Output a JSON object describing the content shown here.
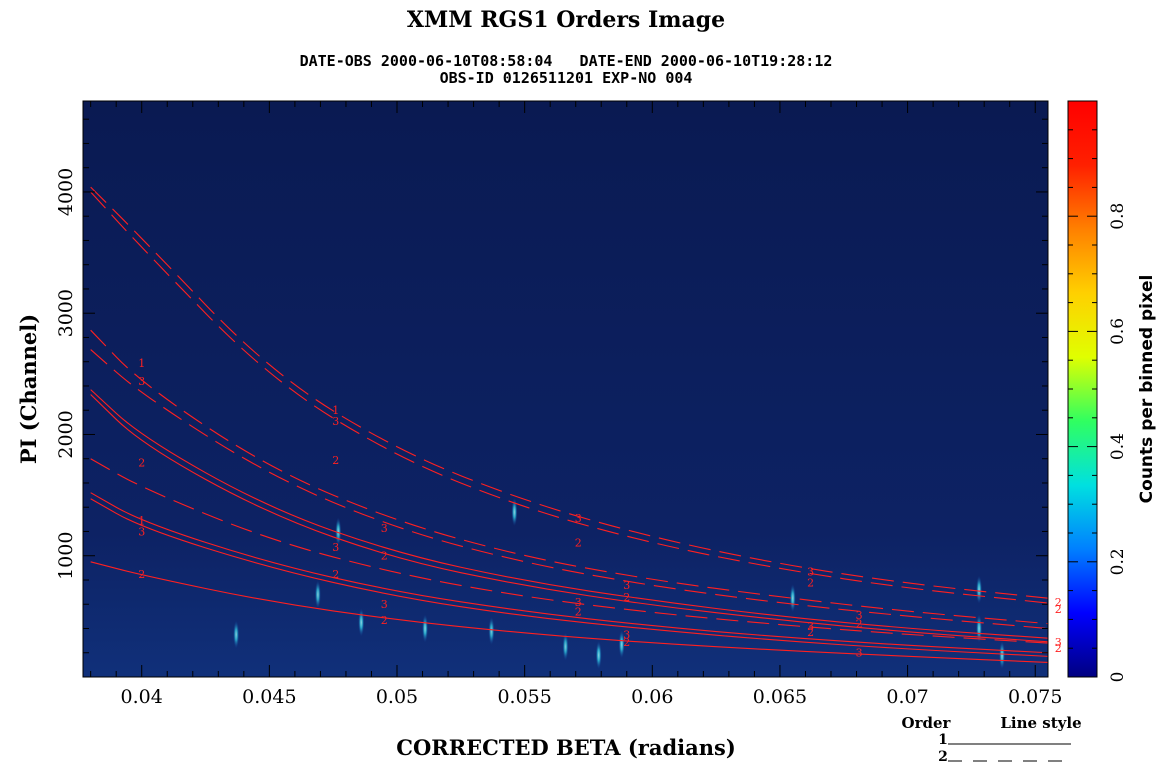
{
  "chart_data": {
    "type": "heatmap",
    "title": "XMM RGS1 Orders Image",
    "subtitle_line1": "DATE-OBS 2000-06-10T08:58:04   DATE-END 2000-06-10T19:28:12",
    "subtitle_line2": "OBS-ID 0126511201 EXP-NO 004",
    "xlabel": "CORRECTED BETA (radians)",
    "ylabel": "PI (Channel)",
    "xlim": [
      0.0377,
      0.0755
    ],
    "ylim": [
      0,
      4750
    ],
    "xticks": [
      0.04,
      0.045,
      0.05,
      0.055,
      0.06,
      0.065,
      0.07,
      0.075
    ],
    "xtick_labels": [
      "0.04",
      "0.045",
      "0.05",
      "0.055",
      "0.06",
      "0.065",
      "0.07",
      "0.075"
    ],
    "yticks": [
      1000,
      2000,
      3000,
      4000
    ],
    "ytick_labels": [
      "1000",
      "2000",
      "3000",
      "4000"
    ],
    "colorbar": {
      "label": "Counts per binned pixel",
      "range": [
        0,
        1
      ],
      "ticks": [
        0,
        0.2,
        0.4,
        0.6,
        0.8
      ],
      "tick_labels": [
        "0",
        "0.2",
        "0.4",
        "0.6",
        "0.8"
      ],
      "colors": [
        "#000080",
        "#0000ff",
        "#0080ff",
        "#00e0e0",
        "#30ff60",
        "#e0ff00",
        "#ffd000",
        "#ff8000",
        "#ff2000",
        "#ff0000"
      ]
    },
    "legend": {
      "header_order": "Order",
      "header_style": "Line style",
      "entries": [
        {
          "order": "1",
          "style": "solid"
        },
        {
          "order": "2",
          "style": "dashed"
        }
      ]
    },
    "background_color": "#0c1e5c",
    "curve_color": "#ff2020",
    "curves": [
      {
        "style": "dashed",
        "order": 1,
        "x": [
          0.038,
          0.04,
          0.045,
          0.05,
          0.055,
          0.06,
          0.065,
          0.07,
          0.0755
        ],
        "y": [
          4040,
          3620,
          2520,
          1870,
          1450,
          1150,
          930,
          770,
          650
        ]
      },
      {
        "style": "dashed",
        "order": 1,
        "x": [
          0.038,
          0.04,
          0.045,
          0.05,
          0.055,
          0.06,
          0.065,
          0.07,
          0.0755
        ],
        "y": [
          4000,
          3540,
          2460,
          1810,
          1390,
          1100,
          890,
          730,
          610
        ]
      },
      {
        "style": "dashed",
        "order": 2,
        "x": [
          0.038,
          0.04,
          0.045,
          0.05,
          0.055,
          0.06,
          0.065,
          0.07,
          0.0755
        ],
        "y": [
          2860,
          2420,
          1720,
          1280,
          990,
          800,
          660,
          540,
          440
        ]
      },
      {
        "style": "dashed",
        "order": 2,
        "x": [
          0.038,
          0.04,
          0.045,
          0.05,
          0.055,
          0.06,
          0.065,
          0.07,
          0.0755
        ],
        "y": [
          2700,
          2330,
          1660,
          1220,
          940,
          750,
          610,
          500,
          400
        ]
      },
      {
        "style": "dashed",
        "order": 2,
        "x": [
          0.038,
          0.04,
          0.045,
          0.05,
          0.055,
          0.06,
          0.065,
          0.07,
          0.0755
        ],
        "y": [
          1800,
          1560,
          1130,
          850,
          660,
          530,
          430,
          350,
          280
        ]
      },
      {
        "style": "solid",
        "order": 1,
        "x": [
          0.038,
          0.04,
          0.045,
          0.05,
          0.055,
          0.06,
          0.065,
          0.07,
          0.0755
        ],
        "y": [
          2370,
          1980,
          1390,
          1020,
          790,
          630,
          500,
          400,
          320
        ]
      },
      {
        "style": "solid",
        "order": 1,
        "x": [
          0.038,
          0.04,
          0.045,
          0.05,
          0.055,
          0.06,
          0.065,
          0.07,
          0.0755
        ],
        "y": [
          2330,
          1920,
          1340,
          970,
          750,
          590,
          470,
          370,
          290
        ]
      },
      {
        "style": "solid",
        "order": 1,
        "x": [
          0.038,
          0.04,
          0.045,
          0.05,
          0.055,
          0.06,
          0.065,
          0.07,
          0.0755
        ],
        "y": [
          1520,
          1280,
          940,
          700,
          540,
          420,
          330,
          260,
          200
        ]
      },
      {
        "style": "solid",
        "order": 1,
        "x": [
          0.038,
          0.04,
          0.045,
          0.05,
          0.055,
          0.06,
          0.065,
          0.07,
          0.0755
        ],
        "y": [
          1470,
          1230,
          900,
          660,
          500,
          390,
          300,
          230,
          170
        ]
      },
      {
        "style": "solid",
        "order": 2,
        "x": [
          0.038,
          0.04,
          0.045,
          0.05,
          0.055,
          0.06,
          0.065,
          0.07,
          0.0755
        ],
        "y": [
          950,
          840,
          620,
          470,
          360,
          280,
          220,
          170,
          120
        ]
      }
    ],
    "curve_labels": [
      {
        "text": "1",
        "x": 0.04,
        "y": 2590
      },
      {
        "text": "3",
        "x": 0.04,
        "y": 2440
      },
      {
        "text": "1",
        "x": 0.04,
        "y": 1290
      },
      {
        "text": "3",
        "x": 0.04,
        "y": 1200
      },
      {
        "text": "2",
        "x": 0.04,
        "y": 1770
      },
      {
        "text": "2",
        "x": 0.04,
        "y": 850
      },
      {
        "text": "1",
        "x": 0.0476,
        "y": 2200
      },
      {
        "text": "3",
        "x": 0.0476,
        "y": 2110
      },
      {
        "text": "2",
        "x": 0.0476,
        "y": 1790
      },
      {
        "text": "3",
        "x": 0.0476,
        "y": 1070
      },
      {
        "text": "2",
        "x": 0.0476,
        "y": 850
      },
      {
        "text": "3",
        "x": 0.0495,
        "y": 1230
      },
      {
        "text": "2",
        "x": 0.0495,
        "y": 1000
      },
      {
        "text": "3",
        "x": 0.0495,
        "y": 600
      },
      {
        "text": "2",
        "x": 0.0495,
        "y": 470
      },
      {
        "text": "3",
        "x": 0.0571,
        "y": 1310
      },
      {
        "text": "2",
        "x": 0.0571,
        "y": 1110
      },
      {
        "text": "3",
        "x": 0.0571,
        "y": 620
      },
      {
        "text": "2",
        "x": 0.0571,
        "y": 540
      },
      {
        "text": "3",
        "x": 0.059,
        "y": 760
      },
      {
        "text": "2",
        "x": 0.059,
        "y": 660
      },
      {
        "text": "3",
        "x": 0.059,
        "y": 350
      },
      {
        "text": "2",
        "x": 0.059,
        "y": 290
      },
      {
        "text": "3",
        "x": 0.0662,
        "y": 870
      },
      {
        "text": "2",
        "x": 0.0662,
        "y": 780
      },
      {
        "text": "3",
        "x": 0.0662,
        "y": 420
      },
      {
        "text": "2",
        "x": 0.0662,
        "y": 370
      },
      {
        "text": "3",
        "x": 0.0681,
        "y": 510
      },
      {
        "text": "2",
        "x": 0.0681,
        "y": 440
      },
      {
        "text": "3",
        "x": 0.0681,
        "y": 200
      },
      {
        "text": "2",
        "x": 0.0759,
        "y": 620
      },
      {
        "text": "2",
        "x": 0.0759,
        "y": 560
      },
      {
        "text": "3",
        "x": 0.0759,
        "y": 290
      },
      {
        "text": "2",
        "x": 0.0759,
        "y": 240
      }
    ],
    "emission_spots": [
      {
        "x": 0.0437,
        "y": 350,
        "intensity": 0.25
      },
      {
        "x": 0.0469,
        "y": 680,
        "intensity": 0.25
      },
      {
        "x": 0.0477,
        "y": 1200,
        "intensity": 0.3
      },
      {
        "x": 0.0486,
        "y": 450,
        "intensity": 0.3
      },
      {
        "x": 0.0511,
        "y": 400,
        "intensity": 0.3
      },
      {
        "x": 0.0537,
        "y": 380,
        "intensity": 0.25
      },
      {
        "x": 0.0546,
        "y": 1360,
        "intensity": 0.3
      },
      {
        "x": 0.0566,
        "y": 250,
        "intensity": 0.25
      },
      {
        "x": 0.0579,
        "y": 180,
        "intensity": 0.3
      },
      {
        "x": 0.0588,
        "y": 270,
        "intensity": 0.3
      },
      {
        "x": 0.0655,
        "y": 650,
        "intensity": 0.3
      },
      {
        "x": 0.0728,
        "y": 720,
        "intensity": 0.3
      },
      {
        "x": 0.0728,
        "y": 400,
        "intensity": 0.3
      },
      {
        "x": 0.0737,
        "y": 180,
        "intensity": 0.3
      }
    ]
  }
}
